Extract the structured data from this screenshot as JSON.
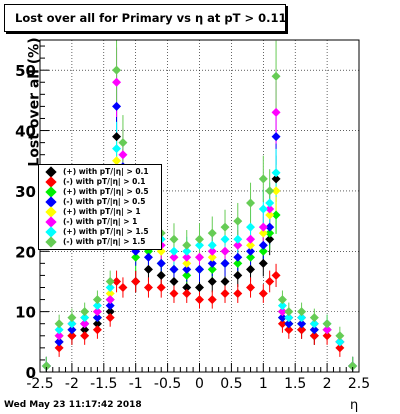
{
  "title": "Lost over all for Primary vs   η at pT > 0.11",
  "ylabel": "Lost over all (%)",
  "xlabel": "η",
  "footer": "Wed May 23 11:17:42 2018",
  "chart_data": {
    "type": "scatter",
    "xlim": [
      -2.5,
      2.5
    ],
    "ylim": [
      0,
      55
    ],
    "x_ticks": [
      "-2.5",
      "-2",
      "-1.5",
      "-1",
      "-0.5",
      "0",
      "0.5",
      "1",
      "1.5",
      "2",
      "2.5"
    ],
    "y_ticks": [
      "0",
      "10",
      "20",
      "30",
      "40",
      "50"
    ],
    "grid": true,
    "legend_position": "left",
    "series": [
      {
        "name": "(+) with pT/|η| > 0.1",
        "color": "#000000",
        "x": [
          -2.4,
          -2.2,
          -2.0,
          -1.8,
          -1.6,
          -1.4,
          -1.3,
          -1.2,
          -1.0,
          -0.8,
          -0.6,
          -0.4,
          -0.2,
          0.0,
          0.2,
          0.4,
          0.6,
          0.8,
          1.0,
          1.1,
          1.2,
          1.3,
          1.4,
          1.6,
          1.8,
          2.0,
          2.2,
          2.4
        ],
        "y": [
          1,
          5,
          6,
          7,
          8,
          10,
          39,
          33,
          15,
          17,
          16,
          15,
          14,
          14,
          15,
          15,
          16,
          17,
          18,
          22,
          32,
          10,
          8,
          7,
          6,
          7,
          5,
          1
        ]
      },
      {
        "name": "(-) with pT/|η| > 0.1",
        "color": "#ff0000",
        "x": [
          -2.4,
          -2.2,
          -2.0,
          -1.8,
          -1.6,
          -1.4,
          -1.3,
          -1.2,
          -1.0,
          -0.8,
          -0.6,
          -0.4,
          -0.2,
          0.0,
          0.2,
          0.4,
          0.6,
          0.8,
          1.0,
          1.1,
          1.2,
          1.3,
          1.4,
          1.6,
          1.8,
          2.0,
          2.2,
          2.4
        ],
        "y": [
          1,
          4,
          6,
          6,
          7,
          9,
          15,
          14,
          15,
          14,
          14,
          13,
          13,
          12,
          12,
          13,
          13,
          14,
          13,
          15,
          16,
          8,
          7,
          7,
          6,
          6,
          4,
          1
        ]
      },
      {
        "name": "(+) with pT/|η| > 0.5",
        "color": "#00ee00",
        "x": [
          -2.4,
          -2.2,
          -2.0,
          -1.8,
          -1.6,
          -1.4,
          -1.3,
          -1.2,
          -1.0,
          -0.8,
          -0.6,
          -0.4,
          -0.2,
          0.0,
          0.2,
          0.4,
          0.6,
          0.8,
          1.0,
          1.1,
          1.2,
          1.3,
          1.4,
          1.6,
          1.8,
          2.0,
          2.2,
          2.4
        ],
        "y": [
          1,
          6,
          7,
          8,
          9,
          12,
          30,
          26,
          19,
          20,
          18,
          17,
          16,
          17,
          17,
          18,
          18,
          19,
          20,
          23,
          26,
          9,
          8,
          8,
          7,
          7,
          5,
          1
        ]
      },
      {
        "name": "(-) with pT/|η| > 0.5",
        "color": "#0000ff",
        "x": [
          -2.4,
          -2.2,
          -2.0,
          -1.8,
          -1.6,
          -1.4,
          -1.3,
          -1.2,
          -1.0,
          -0.8,
          -0.6,
          -0.4,
          -0.2,
          0.0,
          0.2,
          0.4,
          0.6,
          0.8,
          1.0,
          1.1,
          1.2,
          1.3,
          1.4,
          1.6,
          1.8,
          2.0,
          2.2,
          2.4
        ],
        "y": [
          1,
          5,
          7,
          8,
          9,
          11,
          44,
          34,
          20,
          19,
          18,
          17,
          17,
          17,
          18,
          18,
          19,
          20,
          21,
          24,
          39,
          9,
          8,
          8,
          7,
          7,
          5,
          1
        ]
      },
      {
        "name": "(+) with pT/|η| > 1",
        "color": "#ffff00",
        "x": [
          -2.4,
          -2.2,
          -2.0,
          -1.8,
          -1.6,
          -1.4,
          -1.3,
          -1.2,
          -1.0,
          -0.8,
          -0.6,
          -0.4,
          -0.2,
          0.0,
          0.2,
          0.4,
          0.6,
          0.8,
          1.0,
          1.1,
          1.2,
          1.3,
          1.4,
          1.6,
          1.8,
          2.0,
          2.2,
          2.4
        ],
        "y": [
          1,
          6,
          8,
          9,
          10,
          13,
          35,
          29,
          22,
          21,
          20,
          19,
          18,
          19,
          19,
          20,
          21,
          21,
          23,
          26,
          30,
          10,
          9,
          9,
          8,
          7,
          5,
          1
        ]
      },
      {
        "name": "(-) with pT/|η| > 1",
        "color": "#ff00ff",
        "x": [
          -2.4,
          -2.2,
          -2.0,
          -1.8,
          -1.6,
          -1.4,
          -1.3,
          -1.2,
          -1.0,
          -0.8,
          -0.6,
          -0.4,
          -0.2,
          0.0,
          0.2,
          0.4,
          0.6,
          0.8,
          1.0,
          1.1,
          1.2,
          1.3,
          1.4,
          1.6,
          1.8,
          2.0,
          2.2,
          2.4
        ],
        "y": [
          1,
          6,
          8,
          8,
          10,
          12,
          48,
          36,
          24,
          22,
          21,
          19,
          19,
          19,
          20,
          20,
          21,
          22,
          24,
          27,
          43,
          10,
          9,
          9,
          8,
          7,
          5,
          1
        ]
      },
      {
        "name": "(+) with pT/|η| > 1.5",
        "color": "#00ffff",
        "x": [
          -2.4,
          -2.2,
          -2.0,
          -1.8,
          -1.6,
          -1.4,
          -1.3,
          -1.2,
          -1.0,
          -0.8,
          -0.6,
          -0.4,
          -0.2,
          0.0,
          0.2,
          0.4,
          0.6,
          0.8,
          1.0,
          1.1,
          1.2,
          1.3,
          1.4,
          1.6,
          1.8,
          2.0,
          2.2,
          2.4
        ],
        "y": [
          1,
          7,
          8,
          9,
          11,
          14,
          37,
          30,
          27,
          23,
          22,
          20,
          20,
          21,
          21,
          22,
          22,
          24,
          27,
          28,
          33,
          11,
          9,
          9,
          8,
          8,
          5,
          1
        ]
      },
      {
        "name": "(-) with pT/|η| > 1.5",
        "color": "#66cc55",
        "x": [
          -2.4,
          -2.2,
          -2.0,
          -1.8,
          -1.6,
          -1.4,
          -1.3,
          -1.2,
          -1.0,
          -0.8,
          -0.6,
          -0.4,
          -0.2,
          0.0,
          0.2,
          0.4,
          0.6,
          0.8,
          1.0,
          1.1,
          1.2,
          1.3,
          1.4,
          1.6,
          1.8,
          2.0,
          2.2,
          2.4
        ],
        "y": [
          1,
          8,
          9,
          10,
          12,
          15,
          50,
          38,
          30,
          25,
          23,
          22,
          21,
          22,
          23,
          24,
          25,
          28,
          32,
          30,
          49,
          12,
          10,
          10,
          9,
          8,
          6,
          1
        ]
      }
    ]
  }
}
